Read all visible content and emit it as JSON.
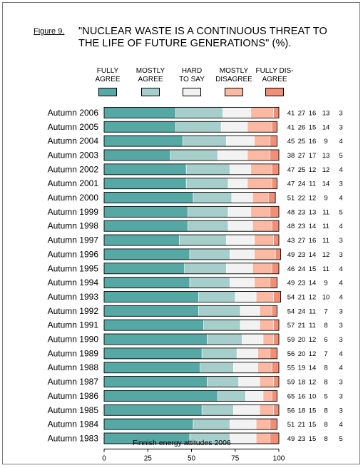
{
  "figure_label": "Figure 9.",
  "title_line_1": "\"NUCLEAR WASTE IS A CONTINUOUS THREAT TO",
  "title_line_2": "THE LIFE OF FUTURE GENERATIONS\" (%).",
  "colors": {
    "fully_agree": "#56a8a5",
    "mostly_agree": "#a6cecb",
    "hard_to_say": "#f2f2f2",
    "mostly_disagree": "#fbb8a3",
    "fully_disagree": "#f08e76"
  },
  "chart_data": {
    "type": "bar",
    "orientation": "horizontal",
    "stacked": true,
    "xlabel": "Finnish energy attitudes 2006",
    "xlim": [
      0,
      100
    ],
    "xticks": [
      0,
      25,
      50,
      75,
      100
    ],
    "legend": [
      "FULLY AGREE",
      "MOSTLY AGREE",
      "HARD TO SAY",
      "MOSTLY DISAGREE",
      "FULLY DIS- AGREE"
    ],
    "legend_lines": [
      [
        "FULLY",
        "AGREE"
      ],
      [
        "MOSTLY",
        "AGREE"
      ],
      [
        "HARD",
        "TO SAY"
      ],
      [
        "MOSTLY",
        "DISAGREE"
      ],
      [
        "FULLY DIS-",
        "AGREE"
      ]
    ],
    "categories": [
      "Autumn 2006",
      "Autumn 2005",
      "Autumn 2004",
      "Autumn 2003",
      "Autumn 2002",
      "Autumn 2001",
      "Autumn 2000",
      "Autumn 1999",
      "Autumn 1998",
      "Autumn 1997",
      "Autumn 1996",
      "Autumn 1995",
      "Autumn 1994",
      "Autumn 1993",
      "Autumn 1992",
      "Autumn 1991",
      "Autumn 1990",
      "Autumn 1989",
      "Autumn 1988",
      "Autumn 1987",
      "Autumn 1986",
      "Autumn 1985",
      "Autumn 1984",
      "Autumn 1983"
    ],
    "series": [
      {
        "name": "FULLY AGREE",
        "values": [
          41,
          41,
          45,
          38,
          47,
          47,
          51,
          48,
          48,
          43,
          49,
          46,
          49,
          54,
          54,
          57,
          59,
          56,
          55,
          59,
          65,
          56,
          51,
          49
        ]
      },
      {
        "name": "MOSTLY AGREE",
        "values": [
          27,
          26,
          25,
          27,
          25,
          24,
          22,
          23,
          23,
          27,
          23,
          24,
          23,
          21,
          24,
          21,
          20,
          20,
          19,
          18,
          16,
          18,
          21,
          23
        ]
      },
      {
        "name": "HARD TO SAY",
        "values": [
          16,
          15,
          16,
          17,
          12,
          11,
          12,
          13,
          14,
          16,
          14,
          15,
          14,
          12,
          11,
          11,
          12,
          12,
          14,
          12,
          10,
          15,
          15,
          15
        ]
      },
      {
        "name": "MOSTLY DISAGREE",
        "values": [
          13,
          14,
          9,
          13,
          12,
          14,
          9,
          11,
          11,
          11,
          12,
          11,
          9,
          10,
          7,
          8,
          6,
          7,
          8,
          8,
          5,
          8,
          8,
          8
        ]
      },
      {
        "name": "FULLY DISAGREE",
        "values": [
          3,
          3,
          4,
          5,
          4,
          3,
          4,
          5,
          4,
          3,
          3,
          4,
          4,
          4,
          3,
          3,
          3,
          4,
          4,
          3,
          3,
          3,
          4,
          5
        ]
      }
    ]
  }
}
